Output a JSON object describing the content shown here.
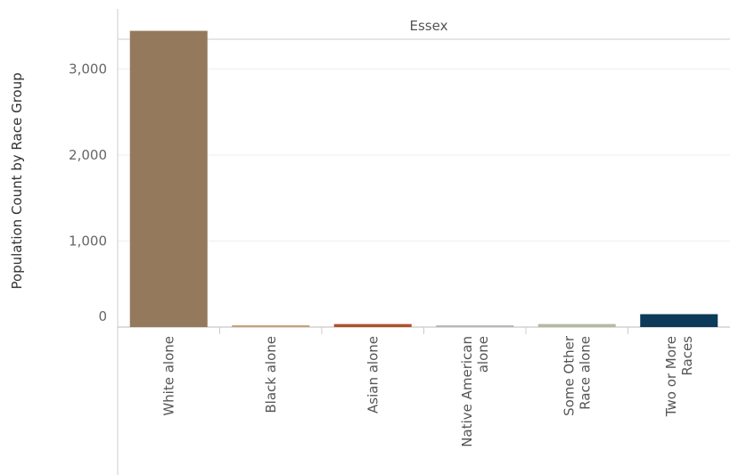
{
  "chart_data": {
    "type": "bar",
    "panel": "Essex",
    "ylabel": "Population Count by Race Group",
    "xlabel": "",
    "categories": [
      [
        "White alone"
      ],
      [
        "Black alone"
      ],
      [
        "Asian alone"
      ],
      [
        "Native American",
        "alone"
      ],
      [
        "Some Other",
        "Race alone"
      ],
      [
        "Two or More",
        "Races"
      ]
    ],
    "values": [
      3445,
      15,
      35,
      5,
      35,
      150
    ],
    "colors": [
      "#94795d",
      "#c8a07a",
      "#b2502e",
      "#b8b8b8",
      "#b5b9a3",
      "#0c3a58"
    ],
    "ylim": [
      0,
      3700
    ],
    "yticks": [
      0,
      1000,
      2000,
      3000
    ],
    "ytick_labels": [
      "0",
      "1,000",
      "2,000",
      "3,000"
    ],
    "grid": true
  }
}
